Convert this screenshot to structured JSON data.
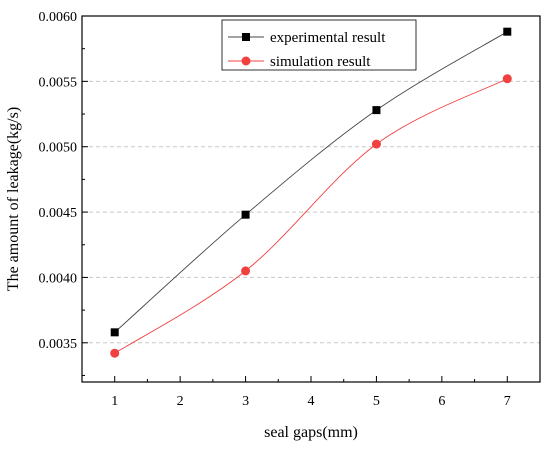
{
  "chart_data": {
    "type": "line",
    "xlabel": "seal gaps(mm)",
    "ylabel": "The amount of leakage(kg/s)",
    "xlim": [
      0.5,
      7.5
    ],
    "ylim": [
      0.0032,
      0.006
    ],
    "x_ticks": [
      "1",
      "2",
      "3",
      "4",
      "5",
      "6",
      "7"
    ],
    "y_ticks": [
      "0.0035",
      "0.0040",
      "0.0045",
      "0.0050",
      "0.0055",
      "0.0060"
    ],
    "grid": "horizontal dashed",
    "legend_position": "top-center",
    "series": [
      {
        "name": "experimental result",
        "marker": "square",
        "color": "#000000",
        "x": [
          1,
          3,
          5,
          7
        ],
        "y": [
          0.00358,
          0.00448,
          0.00528,
          0.00588
        ]
      },
      {
        "name": "simulation result",
        "marker": "circle",
        "color": "#f04040",
        "x": [
          1,
          3,
          5,
          7
        ],
        "y": [
          0.00342,
          0.00405,
          0.00502,
          0.00552
        ]
      }
    ]
  }
}
